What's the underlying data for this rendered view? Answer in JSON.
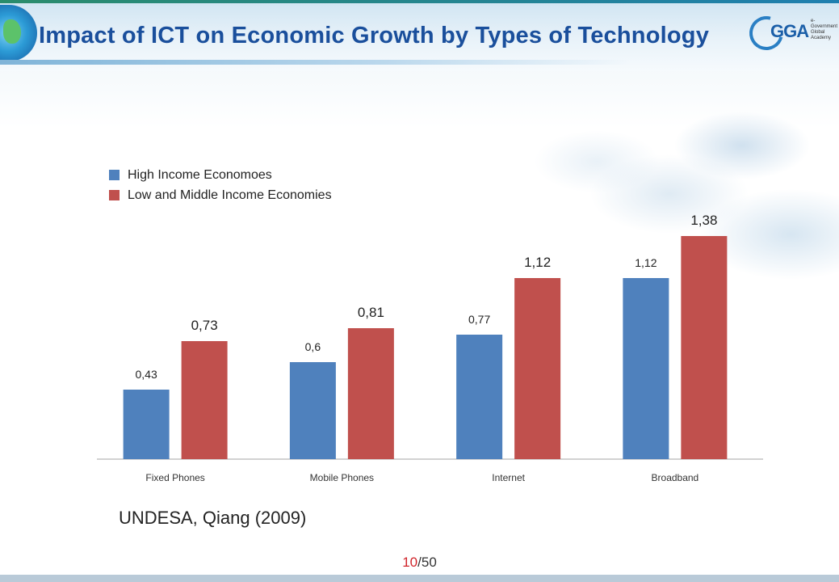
{
  "header": {
    "title": "Impact of ICT on Economic Growth by Types of Technology",
    "logo_text": "GGA",
    "logo_subtext": "e-Government Global Academy"
  },
  "chart_data": {
    "type": "bar",
    "categories": [
      "Fixed Phones",
      "Mobile Phones",
      "Internet",
      "Broadband"
    ],
    "series": [
      {
        "name": "High Income Economoes",
        "color": "#4f81bd",
        "values": [
          0.43,
          0.6,
          0.77,
          1.12
        ],
        "labels": [
          "0,43",
          "0,6",
          "0,77",
          "1,12"
        ]
      },
      {
        "name": "Low and Middle Income Economies",
        "color": "#c0504d",
        "values": [
          0.73,
          0.81,
          1.12,
          1.38
        ],
        "labels": [
          "0,73",
          "0,81",
          "1,12",
          "1,38"
        ]
      }
    ],
    "title": "",
    "xlabel": "",
    "ylabel": "",
    "ylim": [
      0,
      1.6
    ],
    "grid": false,
    "legend_position": "top-left"
  },
  "footer": {
    "citation": "UNDESA, Qiang (2009)",
    "page_current": "10",
    "page_total": "/50"
  },
  "icons": [
    "globe-icon",
    "gga-logo-icon"
  ]
}
